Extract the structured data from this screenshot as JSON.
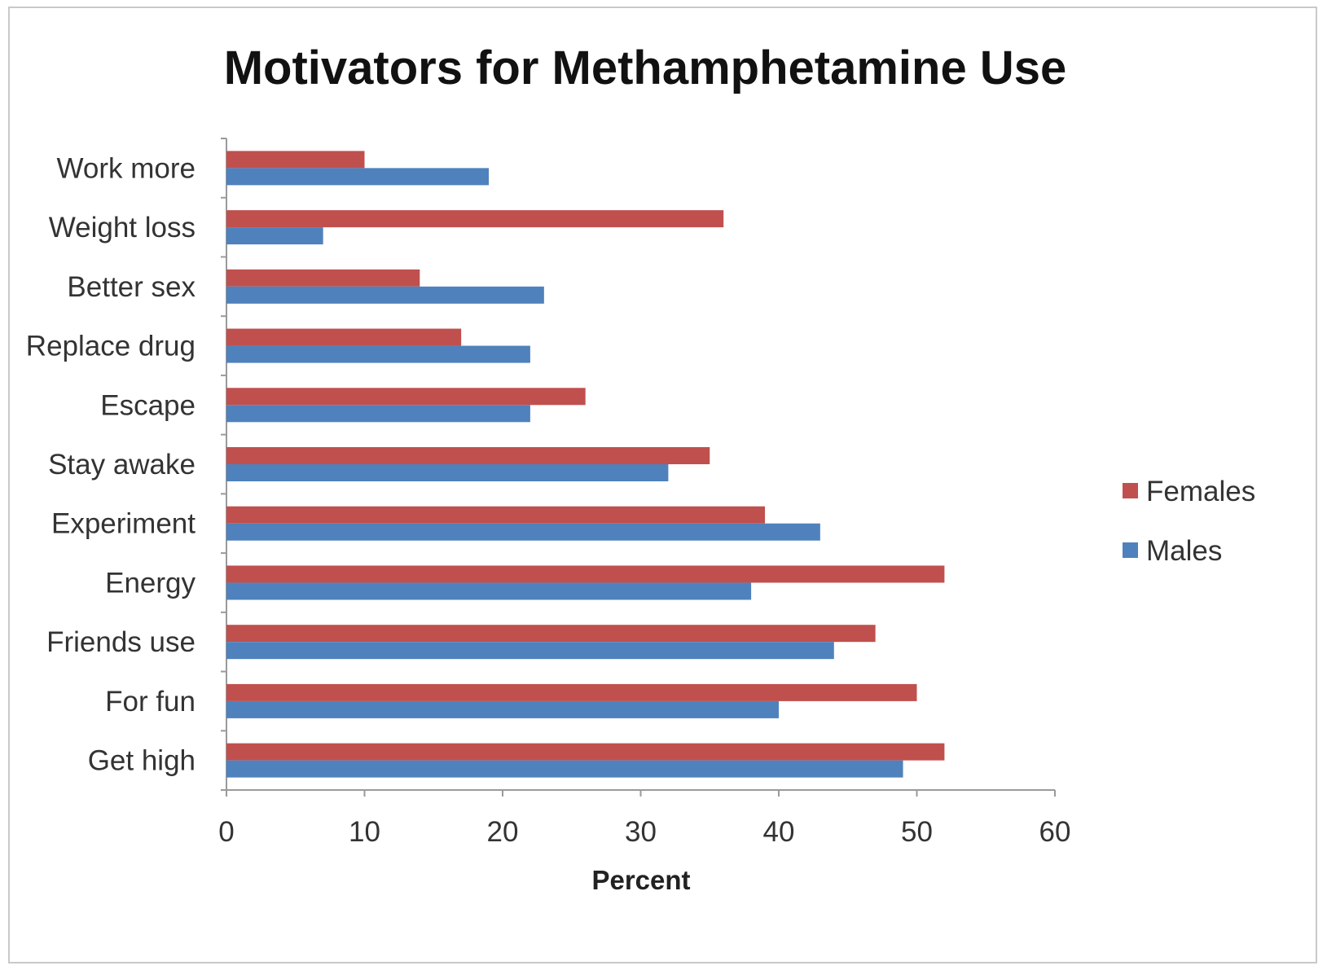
{
  "chart_data": {
    "type": "bar",
    "orientation": "horizontal",
    "title": "Motivators for Methamphetamine Use",
    "xlabel": "Percent",
    "ylabel": "",
    "xlim": [
      0,
      60
    ],
    "ticks": [
      0,
      10,
      20,
      30,
      40,
      50,
      60
    ],
    "categories": [
      "Work more",
      "Weight loss",
      "Better sex",
      "Replace drug",
      "Escape",
      "Stay awake",
      "Experiment",
      "Energy",
      "Friends use",
      "For fun",
      "Get high"
    ],
    "series": [
      {
        "name": "Females",
        "color": "#c0504d",
        "values": [
          10,
          36,
          14,
          17,
          26,
          35,
          39,
          52,
          47,
          50,
          52
        ]
      },
      {
        "name": "Males",
        "color": "#4f81bd",
        "values": [
          19,
          7,
          23,
          22,
          22,
          32,
          43,
          38,
          44,
          40,
          49
        ]
      }
    ],
    "legend": "right",
    "grid": false
  }
}
